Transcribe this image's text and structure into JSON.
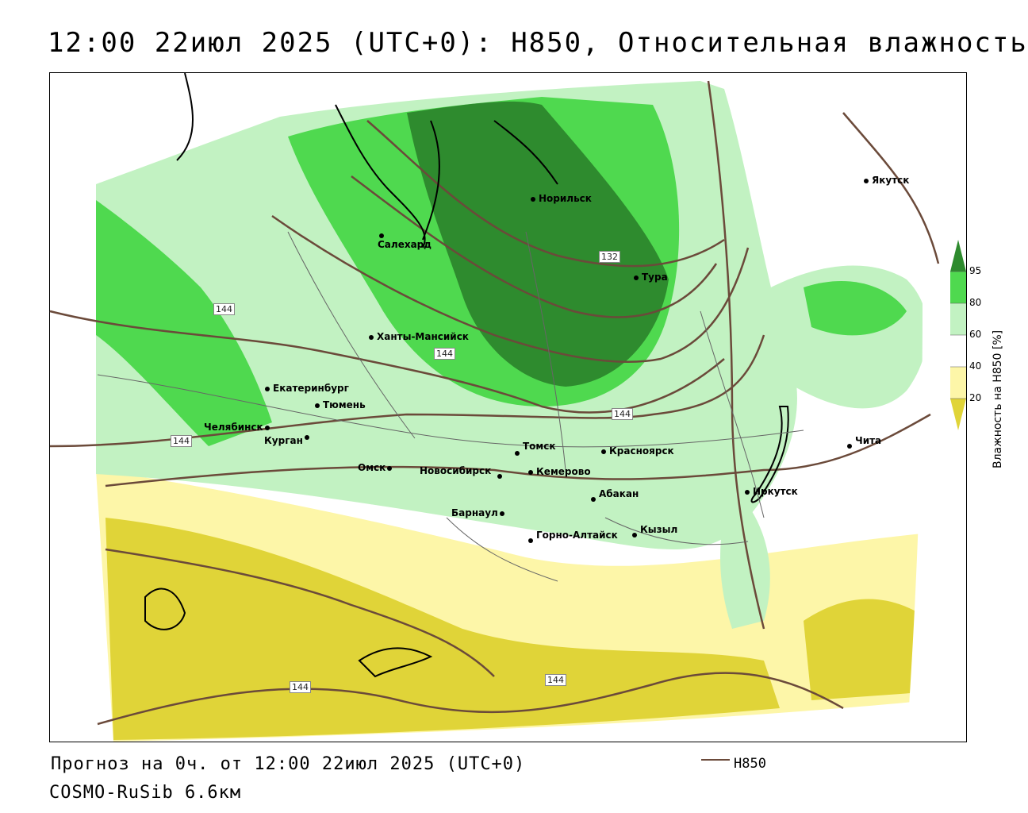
{
  "title": "12:00 22июл 2025 (UTC+0): H850, Относительная влажность",
  "footer": {
    "forecast": "Прогноз на 0ч. от 12:00 22июл 2025 (UTC+0)",
    "model": "COSMO-RuSib 6.6км",
    "legend_label": "H850"
  },
  "colorbar": {
    "title": "Влажность на H850 [%]",
    "ticks": [
      "95",
      "80",
      "60",
      "40",
      "20"
    ],
    "colors": {
      "c95": "#2e8b2e",
      "c80": "#4fd94f",
      "c60": "#c2f2c2",
      "c40": "#ffffff",
      "c20": "#fdf6a8",
      "c0": "#e0d438"
    }
  },
  "contour_labels": [
    "132",
    "144",
    "144",
    "144",
    "144",
    "144",
    "144"
  ],
  "cities": [
    {
      "name": "Якутск",
      "icon": "city-dot-icon"
    },
    {
      "name": "Норильск",
      "icon": "city-dot-icon"
    },
    {
      "name": "Салехард",
      "icon": "city-dot-icon"
    },
    {
      "name": "Тура",
      "icon": "city-dot-icon"
    },
    {
      "name": "Ханты-Мансийск",
      "icon": "city-dot-icon"
    },
    {
      "name": "Екатеринбург",
      "icon": "city-dot-icon"
    },
    {
      "name": "Тюмень",
      "icon": "city-dot-icon"
    },
    {
      "name": "Челябинск",
      "icon": "city-dot-icon"
    },
    {
      "name": "Курган",
      "icon": "city-dot-icon"
    },
    {
      "name": "Омск",
      "icon": "city-dot-icon"
    },
    {
      "name": "Новосибирск",
      "icon": "city-dot-icon"
    },
    {
      "name": "Томск",
      "icon": "city-dot-icon"
    },
    {
      "name": "Кемерово",
      "icon": "city-dot-icon"
    },
    {
      "name": "Красноярск",
      "icon": "city-dot-icon"
    },
    {
      "name": "Барнаул",
      "icon": "city-dot-icon"
    },
    {
      "name": "Абакан",
      "icon": "city-dot-icon"
    },
    {
      "name": "Горно-Алтайск",
      "icon": "city-dot-icon"
    },
    {
      "name": "Кызыл",
      "icon": "city-dot-icon"
    },
    {
      "name": "Иркутск",
      "icon": "city-dot-icon"
    },
    {
      "name": "Чита",
      "icon": "city-dot-icon"
    }
  ]
}
